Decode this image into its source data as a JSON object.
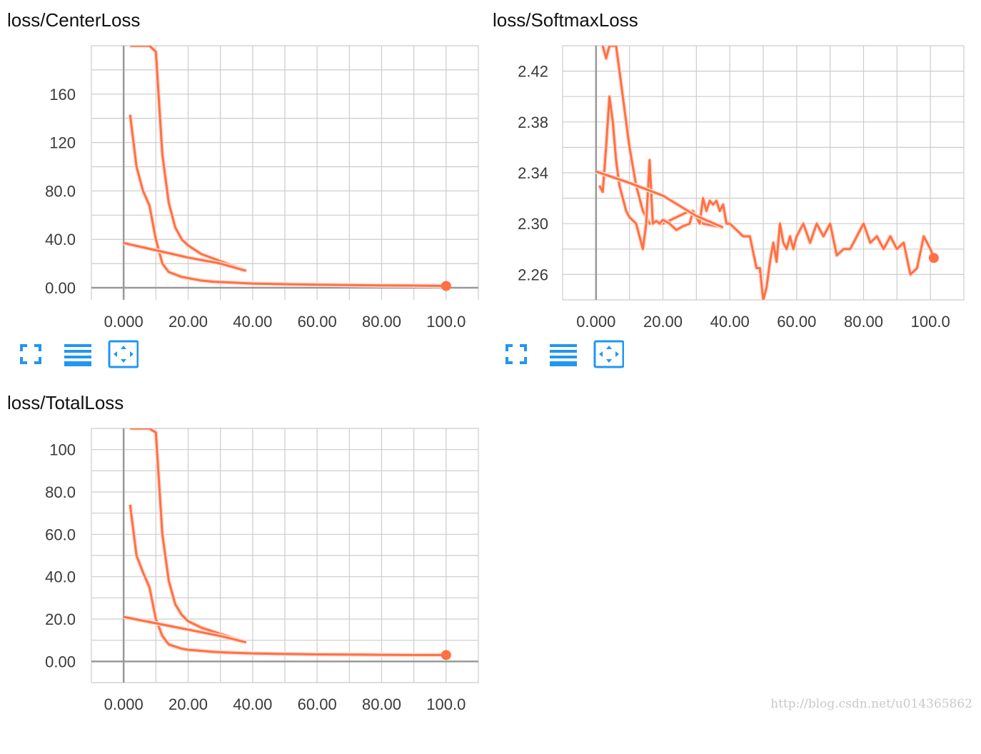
{
  "watermark": "http://blog.csdn.net/u014365862",
  "colors": {
    "series": "#ff7043",
    "series_raw": "#ffddd3",
    "grid": "#cccccc",
    "axis": "#999999",
    "icon_blue": "#2196f3"
  },
  "toolbar_icons": [
    "fullscreen-icon",
    "list-icon",
    "fit-domain-icon"
  ],
  "chart_data": [
    {
      "name": "loss/CenterLoss",
      "title": "loss/CenterLoss",
      "type": "line",
      "xlim": [
        -10,
        110
      ],
      "ylim": [
        -10,
        200
      ],
      "x_ticks": [
        0,
        20,
        40,
        60,
        80,
        100
      ],
      "x_tick_labels": [
        "0.000",
        "20.00",
        "40.00",
        "60.00",
        "80.00",
        "100.0"
      ],
      "y_ticks": [
        0,
        40,
        80,
        120,
        160
      ],
      "y_tick_labels": [
        "0.00",
        "40.0",
        "80.0",
        "120",
        "160"
      ],
      "grid": true,
      "series": [
        {
          "role": "run-a-smoothed",
          "x": [
            2,
            4,
            6,
            8,
            10,
            12,
            14,
            16,
            18,
            20,
            24,
            28,
            32,
            36,
            38
          ],
          "y": [
            200,
            200,
            200,
            200,
            195,
            110,
            70,
            50,
            40,
            35,
            28,
            24,
            20,
            16,
            14
          ]
        },
        {
          "role": "run-b-smoothed",
          "x": [
            2,
            4,
            6,
            8,
            10,
            12,
            14,
            16,
            18,
            20,
            24,
            28,
            32,
            36,
            40,
            50,
            60,
            70,
            80,
            90,
            100
          ],
          "y": [
            143,
            100,
            80,
            68,
            40,
            20,
            13,
            11,
            9,
            8,
            6,
            5,
            4.5,
            4,
            3.5,
            3,
            2.5,
            2.2,
            2,
            1.8,
            1.5
          ],
          "end_marker": true
        },
        {
          "role": "restart-line",
          "x": [
            0,
            10,
            20,
            30,
            38
          ],
          "y": [
            37,
            31,
            25,
            20,
            14
          ]
        }
      ]
    },
    {
      "name": "loss/SoftmaxLoss",
      "title": "loss/SoftmaxLoss",
      "type": "line",
      "xlim": [
        -10,
        110
      ],
      "ylim": [
        2.24,
        2.44
      ],
      "x_ticks": [
        0,
        20,
        40,
        60,
        80,
        100
      ],
      "x_tick_labels": [
        "0.000",
        "20.00",
        "40.00",
        "60.00",
        "80.00",
        "100.0"
      ],
      "y_ticks": [
        2.26,
        2.3,
        2.34,
        2.38,
        2.42
      ],
      "y_tick_labels": [
        "2.26",
        "2.30",
        "2.34",
        "2.38",
        "2.42"
      ],
      "grid": true,
      "series": [
        {
          "role": "run-a-smoothed",
          "x": [
            2,
            3,
            4,
            5,
            6,
            7,
            8,
            9,
            10,
            12,
            14,
            16,
            18,
            20,
            24,
            28,
            32,
            36,
            38
          ],
          "y": [
            2.44,
            2.43,
            2.44,
            2.44,
            2.44,
            2.42,
            2.4,
            2.38,
            2.36,
            2.33,
            2.31,
            2.3,
            2.302,
            2.3,
            2.305,
            2.31,
            2.3,
            2.298,
            2.297
          ]
        },
        {
          "role": "run-b-smoothed",
          "x": [
            1,
            2,
            3,
            4,
            5,
            6,
            7,
            8,
            9,
            10,
            12,
            14,
            15,
            16,
            17,
            18,
            19,
            20,
            22,
            24,
            26,
            28,
            29,
            30,
            31,
            32,
            33,
            34,
            35,
            36,
            37,
            38,
            39,
            40,
            42,
            44,
            46,
            48,
            49,
            50,
            51,
            52,
            53,
            54,
            55,
            56,
            57,
            58,
            59,
            60,
            62,
            64,
            66,
            68,
            70,
            72,
            74,
            76,
            78,
            80,
            82,
            84,
            86,
            88,
            90,
            92,
            94,
            96,
            98,
            100,
            101
          ],
          "y": [
            2.33,
            2.325,
            2.36,
            2.4,
            2.38,
            2.35,
            2.33,
            2.32,
            2.31,
            2.305,
            2.3,
            2.28,
            2.3,
            2.35,
            2.3,
            2.302,
            2.3,
            2.303,
            2.3,
            2.295,
            2.298,
            2.3,
            2.31,
            2.305,
            2.3,
            2.32,
            2.31,
            2.318,
            2.315,
            2.318,
            2.31,
            2.315,
            2.3,
            2.3,
            2.295,
            2.29,
            2.29,
            2.265,
            2.265,
            2.24,
            2.25,
            2.27,
            2.285,
            2.27,
            2.3,
            2.285,
            2.28,
            2.29,
            2.28,
            2.29,
            2.3,
            2.285,
            2.3,
            2.29,
            2.3,
            2.275,
            2.28,
            2.28,
            2.29,
            2.3,
            2.285,
            2.29,
            2.28,
            2.29,
            2.28,
            2.285,
            2.26,
            2.265,
            2.29,
            2.28,
            2.273
          ],
          "end_marker": true
        },
        {
          "role": "restart-line",
          "x": [
            0,
            10,
            20,
            30,
            38
          ],
          "y": [
            2.341,
            2.332,
            2.322,
            2.306,
            2.297
          ]
        }
      ]
    },
    {
      "name": "loss/TotalLoss",
      "title": "loss/TotalLoss",
      "type": "line",
      "xlim": [
        -10,
        110
      ],
      "ylim": [
        -10,
        110
      ],
      "x_ticks": [
        0,
        20,
        40,
        60,
        80,
        100
      ],
      "x_tick_labels": [
        "0.000",
        "20.00",
        "40.00",
        "60.00",
        "80.00",
        "100.0"
      ],
      "y_ticks": [
        0,
        20,
        40,
        60,
        80,
        100
      ],
      "y_tick_labels": [
        "0.00",
        "20.0",
        "40.0",
        "60.0",
        "80.0",
        "100"
      ],
      "grid": true,
      "series": [
        {
          "role": "run-a-smoothed",
          "x": [
            2,
            4,
            6,
            8,
            10,
            12,
            14,
            16,
            18,
            20,
            24,
            28,
            32,
            36,
            38
          ],
          "y": [
            110,
            110,
            110,
            110,
            108,
            60,
            38,
            27,
            22,
            19,
            16,
            14,
            12,
            10,
            9
          ]
        },
        {
          "role": "run-b-smoothed",
          "x": [
            2,
            4,
            6,
            8,
            10,
            12,
            14,
            16,
            18,
            20,
            24,
            28,
            32,
            36,
            40,
            50,
            60,
            70,
            80,
            90,
            100
          ],
          "y": [
            74,
            50,
            42,
            35,
            20,
            12,
            8,
            7,
            6,
            5.5,
            5,
            4.5,
            4.2,
            4,
            3.8,
            3.5,
            3.3,
            3.2,
            3.1,
            3.0,
            3.0
          ],
          "end_marker": true
        },
        {
          "role": "restart-line",
          "x": [
            0,
            10,
            20,
            30,
            38
          ],
          "y": [
            21,
            18,
            15,
            12,
            9
          ]
        }
      ]
    }
  ]
}
